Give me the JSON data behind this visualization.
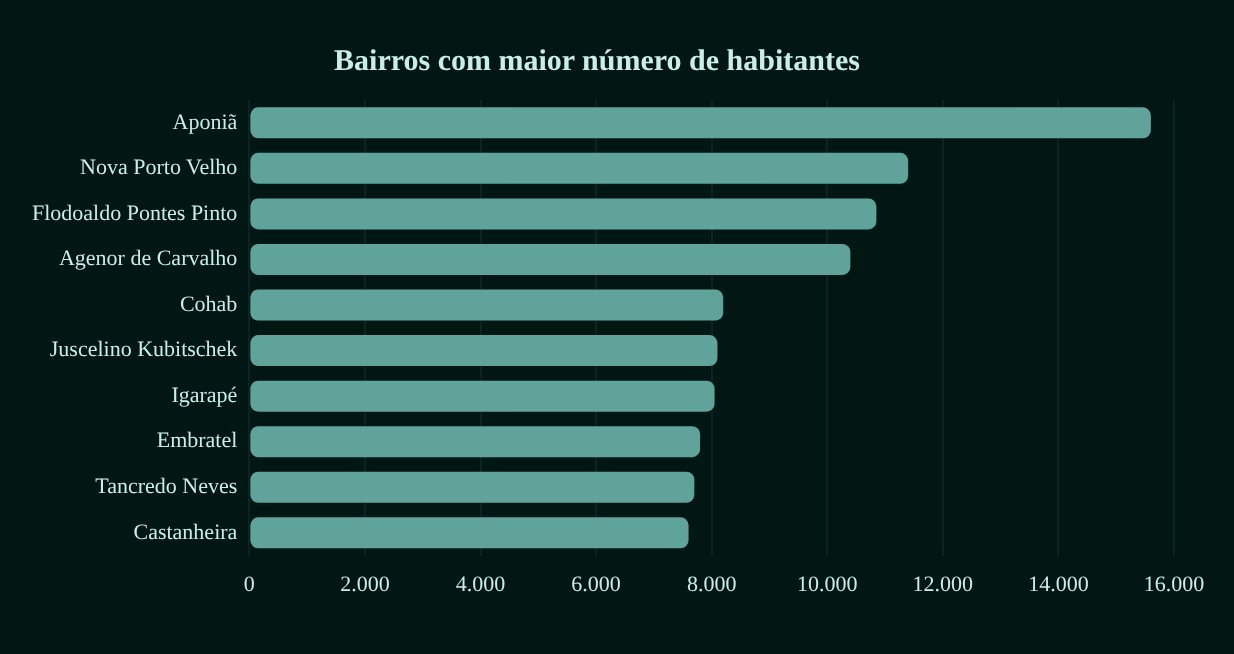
{
  "chart_data": {
    "type": "bar",
    "orientation": "horizontal",
    "title": "Bairros com maior número de habitantes",
    "categories": [
      "Aponiã",
      "Nova Porto Velho",
      "Flodoaldo Pontes Pinto",
      "Agenor de Carvalho",
      "Cohab",
      "Juscelino Kubitschek",
      "Igarapé",
      "Embratel",
      "Tancredo Neves",
      "Castanheira"
    ],
    "values": [
      15600,
      11400,
      10850,
      10400,
      8200,
      8100,
      8050,
      7800,
      7700,
      7600
    ],
    "color": "#5fa39a",
    "xlim": [
      0,
      16000
    ],
    "xticks": [
      {
        "value": 0,
        "label": "0"
      },
      {
        "value": 2000,
        "label": "2.000"
      },
      {
        "value": 4000,
        "label": "4.000"
      },
      {
        "value": 6000,
        "label": "6.000"
      },
      {
        "value": 8000,
        "label": "8.000"
      },
      {
        "value": 10000,
        "label": "10.000"
      },
      {
        "value": 12000,
        "label": "12.000"
      },
      {
        "value": 14000,
        "label": "14.000"
      },
      {
        "value": 16000,
        "label": "16.000"
      }
    ],
    "grid": "x",
    "legend": false
  }
}
